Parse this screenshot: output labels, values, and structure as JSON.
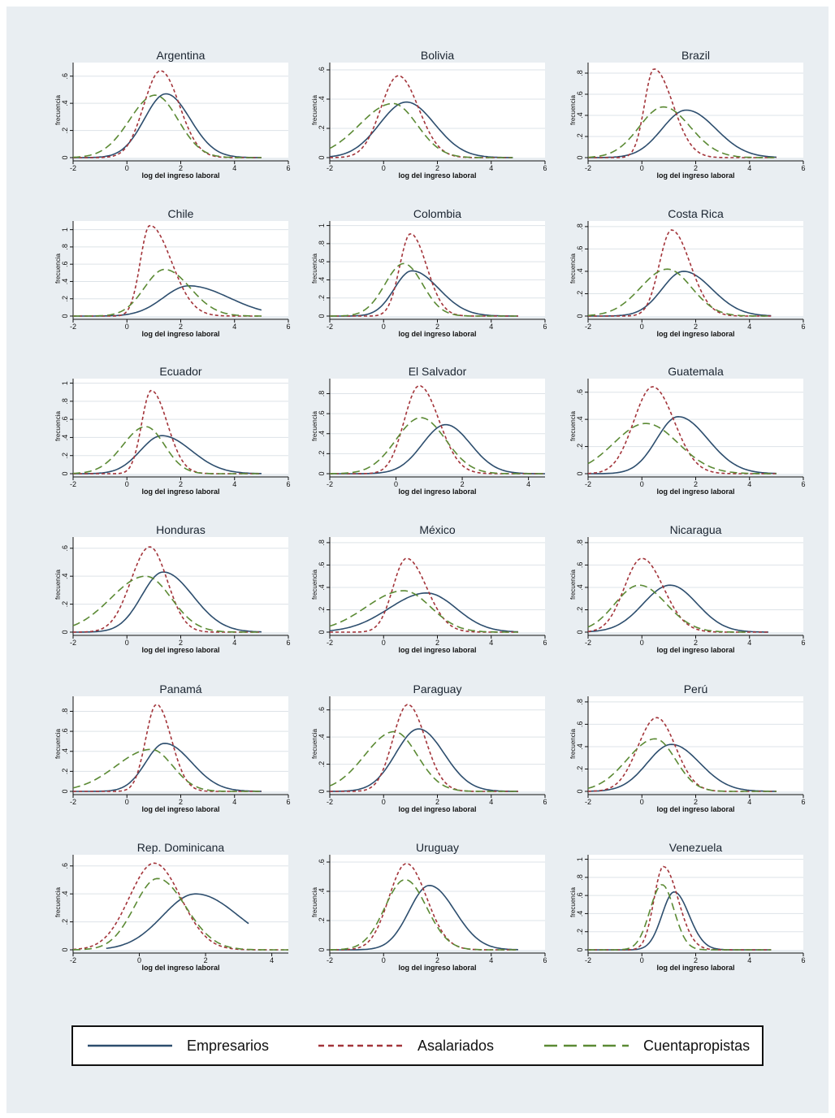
{
  "chart_data": {
    "type": "line",
    "x_label": "log del ingreso laboral",
    "y_label": "frecuencia",
    "legend": {
      "position": "bottom",
      "entries": [
        {
          "name": "Empresarios",
          "color": "#2d4e6e",
          "dash": "solid"
        },
        {
          "name": "Asalariados",
          "color": "#a3343a",
          "dash": "short-dash"
        },
        {
          "name": "Cuentapropistas",
          "color": "#5b8a34",
          "dash": "long-dash"
        }
      ]
    },
    "panels": [
      {
        "title": "Argentina",
        "xlim": [
          -2,
          6
        ],
        "xticks": [
          -2,
          0,
          2,
          4,
          6
        ],
        "ylim": [
          0,
          0.7
        ],
        "yticks": [
          0,
          0.2,
          0.4,
          0.6
        ],
        "ytick_labels": [
          "0",
          ".2",
          ".4",
          ".6"
        ],
        "series": {
          "Empresarios": {
            "peak": 1.45,
            "height": 0.47,
            "sl": 0.8,
            "sr": 0.9,
            "x0": -2,
            "x1": 5
          },
          "Asalariados": {
            "peak": 1.25,
            "height": 0.64,
            "sl": 0.62,
            "sr": 0.7,
            "x0": -2,
            "x1": 5
          },
          "Cuentapropistas": {
            "peak": 1.05,
            "height": 0.46,
            "sl": 0.95,
            "sr": 0.85,
            "x0": -2,
            "x1": 5
          }
        }
      },
      {
        "title": "Bolivia",
        "xlim": [
          -2,
          6
        ],
        "xticks": [
          -2,
          0,
          2,
          4,
          6
        ],
        "ylim": [
          0,
          0.65
        ],
        "yticks": [
          0,
          0.2,
          0.4,
          0.6
        ],
        "ytick_labels": [
          "0",
          ".2",
          ".4",
          ".6"
        ],
        "series": {
          "Empresarios": {
            "peak": 0.85,
            "height": 0.38,
            "sl": 1.0,
            "sr": 1.05,
            "x0": -2,
            "x1": 4.8
          },
          "Asalariados": {
            "peak": 0.55,
            "height": 0.56,
            "sl": 0.65,
            "sr": 0.75,
            "x0": -2,
            "x1": 4.8
          },
          "Cuentapropistas": {
            "peak": 0.35,
            "height": 0.37,
            "sl": 1.25,
            "sr": 0.9,
            "x0": -2,
            "x1": 4.8
          }
        }
      },
      {
        "title": "Brazil",
        "xlim": [
          -2,
          6
        ],
        "xticks": [
          -2,
          0,
          2,
          4,
          6
        ],
        "ylim": [
          0,
          0.9
        ],
        "yticks": [
          0,
          0.2,
          0.4,
          0.6,
          0.8
        ],
        "ytick_labels": [
          "0",
          ".2",
          ".4",
          ".6",
          ".8"
        ],
        "series": {
          "Empresarios": {
            "peak": 1.65,
            "height": 0.45,
            "sl": 0.9,
            "sr": 1.1,
            "x0": -2,
            "x1": 5
          },
          "Asalariados": {
            "peak": 0.45,
            "height": 0.84,
            "sl": 0.35,
            "sr": 0.7,
            "x0": -2,
            "x1": 5
          },
          "Cuentapropistas": {
            "peak": 0.8,
            "height": 0.48,
            "sl": 0.9,
            "sr": 1.0,
            "x0": -2,
            "x1": 5
          }
        }
      },
      {
        "title": "Chile",
        "xlim": [
          -2,
          6
        ],
        "xticks": [
          -2,
          0,
          2,
          4,
          6
        ],
        "ylim": [
          0,
          1.1
        ],
        "yticks": [
          0,
          0.2,
          0.4,
          0.6,
          0.8,
          1
        ],
        "ytick_labels": [
          "0",
          ".2",
          ".4",
          ".6",
          ".8",
          "1"
        ],
        "series": {
          "Empresarios": {
            "peak": 2.3,
            "height": 0.35,
            "sl": 0.95,
            "sr": 1.5,
            "x0": -2,
            "x1": 5
          },
          "Asalariados": {
            "peak": 0.85,
            "height": 1.05,
            "sl": 0.35,
            "sr": 0.8,
            "x0": -2,
            "x1": 5
          },
          "Cuentapropistas": {
            "peak": 1.4,
            "height": 0.54,
            "sl": 0.75,
            "sr": 0.95,
            "x0": -2,
            "x1": 5
          }
        }
      },
      {
        "title": "Colombia",
        "xlim": [
          -2,
          6
        ],
        "xticks": [
          -2,
          0,
          2,
          4,
          6
        ],
        "ylim": [
          0,
          1.05
        ],
        "yticks": [
          0,
          0.2,
          0.4,
          0.6,
          0.8,
          1
        ],
        "ytick_labels": [
          "0",
          ".2",
          ".4",
          ".6",
          ".8",
          "1"
        ],
        "series": {
          "Empresarios": {
            "peak": 1.05,
            "height": 0.5,
            "sl": 0.65,
            "sr": 1.0,
            "x0": -2,
            "x1": 5
          },
          "Asalariados": {
            "peak": 1.0,
            "height": 0.91,
            "sl": 0.4,
            "sr": 0.6,
            "x0": -2,
            "x1": 5
          },
          "Cuentapropistas": {
            "peak": 0.75,
            "height": 0.58,
            "sl": 0.7,
            "sr": 0.7,
            "x0": -2,
            "x1": 5
          }
        }
      },
      {
        "title": "Costa Rica",
        "xlim": [
          -2,
          6
        ],
        "xticks": [
          -2,
          0,
          2,
          4,
          6
        ],
        "ylim": [
          0,
          0.85
        ],
        "yticks": [
          0,
          0.2,
          0.4,
          0.6,
          0.8
        ],
        "ytick_labels": [
          "0",
          ".2",
          ".4",
          ".6",
          ".8"
        ],
        "series": {
          "Empresarios": {
            "peak": 1.55,
            "height": 0.4,
            "sl": 0.8,
            "sr": 1.05,
            "x0": -2,
            "x1": 4.8
          },
          "Asalariados": {
            "peak": 1.1,
            "height": 0.77,
            "sl": 0.45,
            "sr": 0.7,
            "x0": -2,
            "x1": 4.8
          },
          "Cuentapropistas": {
            "peak": 0.95,
            "height": 0.42,
            "sl": 1.0,
            "sr": 0.9,
            "x0": -2,
            "x1": 4.8
          }
        }
      },
      {
        "title": "Ecuador",
        "xlim": [
          -2,
          6
        ],
        "xticks": [
          -2,
          0,
          2,
          4,
          6
        ],
        "ylim": [
          0,
          1.05
        ],
        "yticks": [
          0,
          0.2,
          0.4,
          0.6,
          0.8,
          1
        ],
        "ytick_labels": [
          "0",
          ".2",
          ".4",
          ".6",
          ".8",
          "1"
        ],
        "series": {
          "Empresarios": {
            "peak": 1.3,
            "height": 0.42,
            "sl": 0.8,
            "sr": 1.1,
            "x0": -2,
            "x1": 5
          },
          "Asalariados": {
            "peak": 0.9,
            "height": 0.92,
            "sl": 0.35,
            "sr": 0.6,
            "x0": -2,
            "x1": 5
          },
          "Cuentapropistas": {
            "peak": 0.7,
            "height": 0.52,
            "sl": 0.85,
            "sr": 0.7,
            "x0": -2,
            "x1": 5
          }
        }
      },
      {
        "title": "El Salvador",
        "xlim": [
          -2,
          4.5
        ],
        "xticks": [
          -2,
          0,
          2,
          4
        ],
        "ylim": [
          0,
          0.95
        ],
        "yticks": [
          0,
          0.2,
          0.4,
          0.6,
          0.8
        ],
        "ytick_labels": [
          "0",
          ".2",
          ".4",
          ".6",
          ".8"
        ],
        "series": {
          "Empresarios": {
            "peak": 1.5,
            "height": 0.49,
            "sl": 0.7,
            "sr": 0.75,
            "x0": -2,
            "x1": 4.5
          },
          "Asalariados": {
            "peak": 0.7,
            "height": 0.88,
            "sl": 0.45,
            "sr": 0.6,
            "x0": -2,
            "x1": 4.5
          },
          "Cuentapropistas": {
            "peak": 0.75,
            "height": 0.56,
            "sl": 0.75,
            "sr": 0.75,
            "x0": -2,
            "x1": 4.5
          }
        }
      },
      {
        "title": "Guatemala",
        "xlim": [
          -2,
          6
        ],
        "xticks": [
          -2,
          0,
          2,
          4,
          6
        ],
        "ylim": [
          0,
          0.7
        ],
        "yticks": [
          0,
          0.2,
          0.4,
          0.6
        ],
        "ytick_labels": [
          "0",
          ".2",
          ".4",
          ".6"
        ],
        "series": {
          "Empresarios": {
            "peak": 1.35,
            "height": 0.42,
            "sl": 0.8,
            "sr": 1.1,
            "x0": -2,
            "x1": 5
          },
          "Asalariados": {
            "peak": 0.4,
            "height": 0.64,
            "sl": 0.7,
            "sr": 0.8,
            "x0": -2,
            "x1": 5
          },
          "Cuentapropistas": {
            "peak": 0.15,
            "height": 0.37,
            "sl": 1.2,
            "sr": 1.2,
            "x0": -2,
            "x1": 5
          }
        }
      },
      {
        "title": "Honduras",
        "xlim": [
          -2,
          6
        ],
        "xticks": [
          -2,
          0,
          2,
          4,
          6
        ],
        "ylim": [
          0,
          0.68
        ],
        "yticks": [
          0,
          0.2,
          0.4,
          0.6
        ],
        "ytick_labels": [
          "0",
          ".2",
          ".4",
          ".6"
        ],
        "series": {
          "Empresarios": {
            "peak": 1.35,
            "height": 0.43,
            "sl": 0.8,
            "sr": 1.1,
            "x0": -2,
            "x1": 5
          },
          "Asalariados": {
            "peak": 0.85,
            "height": 0.61,
            "sl": 0.7,
            "sr": 0.65,
            "x0": -2,
            "x1": 5
          },
          "Cuentapropistas": {
            "peak": 0.7,
            "height": 0.4,
            "sl": 1.3,
            "sr": 0.95,
            "x0": -2,
            "x1": 5
          }
        }
      },
      {
        "title": "México",
        "xlim": [
          -2,
          6
        ],
        "xticks": [
          -2,
          0,
          2,
          4,
          6
        ],
        "ylim": [
          0,
          0.85
        ],
        "yticks": [
          0,
          0.2,
          0.4,
          0.6,
          0.8
        ],
        "ytick_labels": [
          "0",
          ".2",
          ".4",
          ".6",
          ".8"
        ],
        "series": {
          "Empresarios": {
            "peak": 1.6,
            "height": 0.35,
            "sl": 1.4,
            "sr": 1.1,
            "x0": -2,
            "x1": 5
          },
          "Asalariados": {
            "peak": 0.85,
            "height": 0.66,
            "sl": 0.5,
            "sr": 0.75,
            "x0": -2,
            "x1": 5
          },
          "Cuentapropistas": {
            "peak": 0.75,
            "height": 0.37,
            "sl": 1.4,
            "sr": 1.0,
            "x0": -2,
            "x1": 5
          }
        }
      },
      {
        "title": "Nicaragua",
        "xlim": [
          -2,
          6
        ],
        "xticks": [
          -2,
          0,
          2,
          4,
          6
        ],
        "ylim": [
          0,
          0.85
        ],
        "yticks": [
          0,
          0.2,
          0.4,
          0.6,
          0.8
        ],
        "ytick_labels": [
          "0",
          ".2",
          ".4",
          ".6",
          ".8"
        ],
        "series": {
          "Empresarios": {
            "peak": 1.05,
            "height": 0.42,
            "sl": 1.0,
            "sr": 1.0,
            "x0": -2,
            "x1": 4.7
          },
          "Asalariados": {
            "peak": 0.0,
            "height": 0.66,
            "sl": 0.65,
            "sr": 0.8,
            "x0": -2,
            "x1": 4.7
          },
          "Cuentapropistas": {
            "peak": -0.1,
            "height": 0.42,
            "sl": 0.9,
            "sr": 1.0,
            "x0": -2,
            "x1": 4
          }
        }
      },
      {
        "title": "Panamá",
        "xlim": [
          -2,
          6
        ],
        "xticks": [
          -2,
          0,
          2,
          4,
          6
        ],
        "ylim": [
          0,
          0.95
        ],
        "yticks": [
          0,
          0.2,
          0.4,
          0.6,
          0.8
        ],
        "ytick_labels": [
          "0",
          ".2",
          ".4",
          ".6",
          ".8"
        ],
        "series": {
          "Empresarios": {
            "peak": 1.4,
            "height": 0.48,
            "sl": 0.7,
            "sr": 1.0,
            "x0": -2,
            "x1": 5
          },
          "Asalariados": {
            "peak": 1.1,
            "height": 0.87,
            "sl": 0.4,
            "sr": 0.55,
            "x0": -2,
            "x1": 5
          },
          "Cuentapropistas": {
            "peak": 0.9,
            "height": 0.42,
            "sl": 1.3,
            "sr": 0.8,
            "x0": -2,
            "x1": 5
          }
        }
      },
      {
        "title": "Paraguay",
        "xlim": [
          -2,
          6
        ],
        "xticks": [
          -2,
          0,
          2,
          4,
          6
        ],
        "ylim": [
          0,
          0.7
        ],
        "yticks": [
          0,
          0.2,
          0.4,
          0.6
        ],
        "ytick_labels": [
          "0",
          ".2",
          ".4",
          ".6"
        ],
        "series": {
          "Empresarios": {
            "peak": 1.3,
            "height": 0.46,
            "sl": 0.85,
            "sr": 0.95,
            "x0": -2,
            "x1": 5
          },
          "Asalariados": {
            "peak": 0.9,
            "height": 0.64,
            "sl": 0.55,
            "sr": 0.65,
            "x0": -2,
            "x1": 5
          },
          "Cuentapropistas": {
            "peak": 0.4,
            "height": 0.44,
            "sl": 1.1,
            "sr": 0.85,
            "x0": -2,
            "x1": 5
          }
        }
      },
      {
        "title": "Perú",
        "xlim": [
          -2,
          6
        ],
        "xticks": [
          -2,
          0,
          2,
          4,
          6
        ],
        "ylim": [
          0,
          0.85
        ],
        "yticks": [
          0,
          0.2,
          0.4,
          0.6,
          0.8
        ],
        "ytick_labels": [
          "0",
          ".2",
          ".4",
          ".6",
          ".8"
        ],
        "series": {
          "Empresarios": {
            "peak": 1.1,
            "height": 0.42,
            "sl": 0.9,
            "sr": 1.05,
            "x0": -2,
            "x1": 5
          },
          "Asalariados": {
            "peak": 0.55,
            "height": 0.66,
            "sl": 0.7,
            "sr": 0.7,
            "x0": -2,
            "x1": 5
          },
          "Cuentapropistas": {
            "peak": 0.5,
            "height": 0.47,
            "sl": 1.05,
            "sr": 0.75,
            "x0": -2,
            "x1": 5
          }
        }
      },
      {
        "title": "Rep. Dominicana",
        "xlim": [
          -2,
          4.5
        ],
        "xticks": [
          -2,
          0,
          2,
          4
        ],
        "ylim": [
          0,
          0.68
        ],
        "yticks": [
          0,
          0.2,
          0.4,
          0.6
        ],
        "ytick_labels": [
          "0",
          ".2",
          ".4",
          ".6"
        ],
        "series": {
          "Empresarios": {
            "peak": 1.7,
            "height": 0.4,
            "sl": 1.0,
            "sr": 1.3,
            "x0": -1,
            "x1": 3.3
          },
          "Asalariados": {
            "peak": 0.45,
            "height": 0.62,
            "sl": 0.75,
            "sr": 0.8,
            "x0": -2,
            "x1": 4.5
          },
          "Cuentapropistas": {
            "peak": 0.55,
            "height": 0.51,
            "sl": 0.7,
            "sr": 0.85,
            "x0": -2,
            "x1": 4.5
          }
        }
      },
      {
        "title": "Uruguay",
        "xlim": [
          -2,
          6
        ],
        "xticks": [
          -2,
          0,
          2,
          4,
          6
        ],
        "ylim": [
          0,
          0.65
        ],
        "yticks": [
          0,
          0.2,
          0.4,
          0.6
        ],
        "ytick_labels": [
          "0",
          ".2",
          ".4",
          ".6"
        ],
        "series": {
          "Empresarios": {
            "peak": 1.7,
            "height": 0.44,
            "sl": 0.75,
            "sr": 0.95,
            "x0": -2,
            "x1": 5
          },
          "Asalariados": {
            "peak": 0.85,
            "height": 0.59,
            "sl": 0.65,
            "sr": 0.75,
            "x0": -2,
            "x1": 5
          },
          "Cuentapropistas": {
            "peak": 0.8,
            "height": 0.48,
            "sl": 0.75,
            "sr": 0.8,
            "x0": -2,
            "x1": 5
          }
        }
      },
      {
        "title": "Venezuela",
        "xlim": [
          -2,
          6
        ],
        "xticks": [
          -2,
          0,
          2,
          4,
          6
        ],
        "ylim": [
          0,
          1.05
        ],
        "yticks": [
          0,
          0.2,
          0.4,
          0.6,
          0.8,
          1
        ],
        "ytick_labels": [
          "0",
          ".2",
          ".4",
          ".6",
          ".8",
          "1"
        ],
        "series": {
          "Empresarios": {
            "peak": 1.2,
            "height": 0.64,
            "sl": 0.45,
            "sr": 0.55,
            "x0": -2,
            "x1": 4.8
          },
          "Asalariados": {
            "peak": 0.8,
            "height": 0.92,
            "sl": 0.35,
            "sr": 0.55,
            "x0": -2,
            "x1": 4.8
          },
          "Cuentapropistas": {
            "peak": 0.75,
            "height": 0.72,
            "sl": 0.45,
            "sr": 0.45,
            "x0": -2,
            "x1": 4.8
          }
        }
      }
    ]
  }
}
